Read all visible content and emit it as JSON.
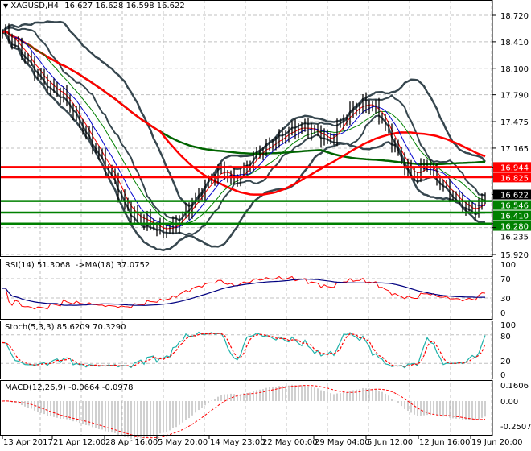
{
  "header": {
    "symbol": "XAGUSD,H4",
    "ohlc": "16.627 16.628 16.598 16.622"
  },
  "price_axis": {
    "ticks": [
      "18.720",
      "18.410",
      "18.100",
      "17.790",
      "17.475",
      "17.165",
      "16.235",
      "15.920"
    ],
    "tick_values": [
      18.72,
      18.41,
      18.1,
      17.79,
      17.475,
      17.165,
      16.235,
      15.92
    ],
    "range": [
      15.92,
      18.72
    ]
  },
  "levels": [
    {
      "label": "16.944",
      "value": 16.944,
      "color": "#ff0000"
    },
    {
      "label": "16.825",
      "value": 16.825,
      "color": "#ff0000"
    },
    {
      "label": "16.546",
      "value": 16.546,
      "color": "#008000"
    },
    {
      "label": "16.410",
      "value": 16.41,
      "color": "#008000"
    },
    {
      "label": "16.280",
      "value": 16.28,
      "color": "#008000"
    }
  ],
  "current_price": {
    "label": "16.622",
    "value": 16.622
  },
  "rsi": {
    "label": "RSI(14) 51.3068  ->MA(18) 37.0752",
    "ticks": [
      "100",
      "70",
      "30",
      "0"
    ]
  },
  "stoch": {
    "label": "Stoch(5,3,3) 85.6209 70.3290",
    "ticks": [
      "100",
      "80",
      "20",
      "0"
    ]
  },
  "macd": {
    "label": "MACD(12,26,9) -0.0664 -0.0978",
    "ticks": [
      "0.1606",
      "0.00",
      "-0.2507"
    ]
  },
  "time_axis": [
    "13 Apr 2017",
    "21 Apr 12:00",
    "28 Apr 16:00",
    "5 May 20:00",
    "14 May 23:00",
    "22 May 00:00",
    "29 May 04:00",
    "5 Jun 12:00",
    "12 Jun 16:00",
    "19 Jun 20:00"
  ],
  "colors": {
    "bars": "#000000",
    "bands": "#37474f",
    "ma_slow_red": "#ff0000",
    "ma_slow_green": "#006400",
    "rsi": "#ff0000",
    "rsi_ma": "#000080",
    "stoch_main": "#20b2aa",
    "stoch_signal": "#ff0000",
    "macd_hist": "#c0c0c0",
    "macd_signal": "#ff0000"
  },
  "chart_data": {
    "type": "ohlc",
    "title": "XAGUSD,H4",
    "approx_close_path": [
      18.52,
      18.38,
      18.19,
      18.0,
      17.86,
      17.77,
      17.53,
      17.3,
      17.06,
      16.83,
      16.5,
      16.35,
      16.3,
      16.21,
      16.24,
      16.4,
      16.59,
      16.78,
      16.92,
      16.78,
      16.92,
      17.11,
      17.2,
      17.3,
      17.39,
      17.41,
      17.34,
      17.25,
      17.48,
      17.63,
      17.69,
      17.6,
      17.3,
      17.01,
      16.83,
      17.0,
      16.78,
      16.64,
      16.5,
      16.43,
      16.62
    ],
    "ylim": [
      15.92,
      18.72
    ],
    "grid": true
  }
}
